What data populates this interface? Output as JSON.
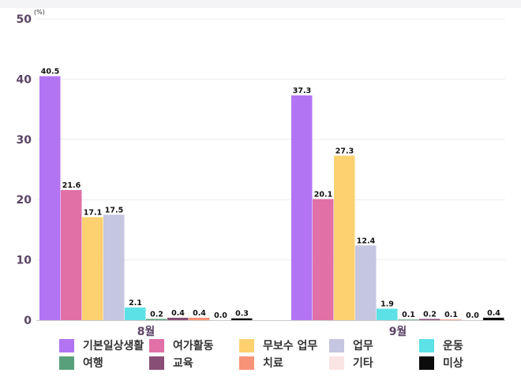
{
  "chart_data": {
    "type": "bar",
    "unit_label": "(%)",
    "categories": [
      "8월",
      "9월"
    ],
    "ylim": [
      0,
      50
    ],
    "yticks": [
      0,
      10,
      20,
      30,
      40,
      50
    ],
    "grid": true,
    "legend_position": "bottom",
    "series": [
      {
        "name": "기본일상생활",
        "color": "#b374f3",
        "values": [
          40.5,
          37.3
        ]
      },
      {
        "name": "여가활동",
        "color": "#e070a6",
        "values": [
          21.6,
          20.1
        ]
      },
      {
        "name": "무보수 업무",
        "color": "#fdd170",
        "values": [
          17.1,
          27.3
        ]
      },
      {
        "name": "업무",
        "color": "#c5c6df",
        "values": [
          17.5,
          12.4
        ]
      },
      {
        "name": "운동",
        "color": "#5ce1e6",
        "values": [
          2.1,
          1.9
        ]
      },
      {
        "name": "여행",
        "color": "#58a07c",
        "values": [
          0.2,
          0.1
        ]
      },
      {
        "name": "교육",
        "color": "#884e75",
        "values": [
          0.4,
          0.2
        ]
      },
      {
        "name": "치료",
        "color": "#f89378",
        "values": [
          0.4,
          0.1
        ]
      },
      {
        "name": "기타",
        "color": "#fbe4e4",
        "values": [
          0.0,
          0.0
        ]
      },
      {
        "name": "미상",
        "color": "#0c0c0c",
        "values": [
          0.3,
          0.4
        ]
      }
    ]
  }
}
